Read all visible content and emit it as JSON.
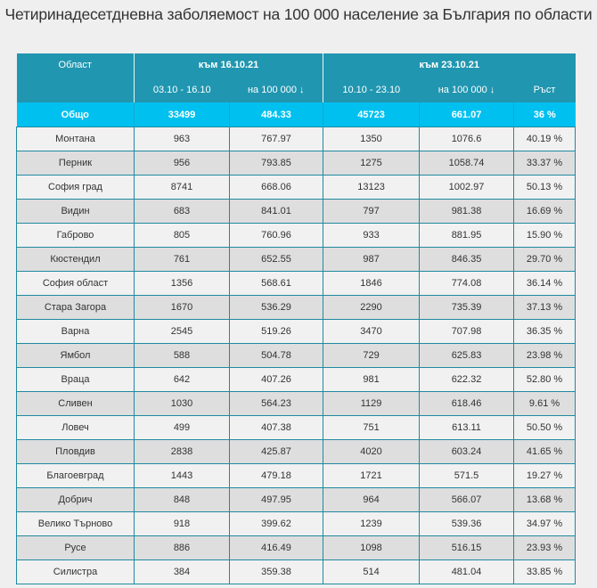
{
  "title": "Четиринадесетдневна заболяемост на 100 000 население за България по области",
  "header": {
    "region": "Област",
    "group1": "към 16.10.21",
    "group2": "към 23.10.21",
    "g1_cases": "03.10 - 16.10",
    "g1_per100k": "на 100 000 ↓",
    "g2_cases": "10.10 - 23.10",
    "g2_per100k": "на 100 000 ↓",
    "growth": "Ръст"
  },
  "total": {
    "region": "Общо",
    "g1_cases": "33499",
    "g1_per100k": "484.33",
    "g2_cases": "45723",
    "g2_per100k": "661.07",
    "growth": "36 %"
  },
  "rows": [
    {
      "region": "Монтана",
      "g1_cases": "963",
      "g1_per100k": "767.97",
      "g2_cases": "1350",
      "g2_per100k": "1076.6",
      "growth": "40.19 %"
    },
    {
      "region": "Перник",
      "g1_cases": "956",
      "g1_per100k": "793.85",
      "g2_cases": "1275",
      "g2_per100k": "1058.74",
      "growth": "33.37 %"
    },
    {
      "region": "София град",
      "g1_cases": "8741",
      "g1_per100k": "668.06",
      "g2_cases": "13123",
      "g2_per100k": "1002.97",
      "growth": "50.13 %"
    },
    {
      "region": "Видин",
      "g1_cases": "683",
      "g1_per100k": "841.01",
      "g2_cases": "797",
      "g2_per100k": "981.38",
      "growth": "16.69 %"
    },
    {
      "region": "Габрово",
      "g1_cases": "805",
      "g1_per100k": "760.96",
      "g2_cases": "933",
      "g2_per100k": "881.95",
      "growth": "15.90 %"
    },
    {
      "region": "Кюстендил",
      "g1_cases": "761",
      "g1_per100k": "652.55",
      "g2_cases": "987",
      "g2_per100k": "846.35",
      "growth": "29.70 %"
    },
    {
      "region": "София област",
      "g1_cases": "1356",
      "g1_per100k": "568.61",
      "g2_cases": "1846",
      "g2_per100k": "774.08",
      "growth": "36.14 %"
    },
    {
      "region": "Стара Загора",
      "g1_cases": "1670",
      "g1_per100k": "536.29",
      "g2_cases": "2290",
      "g2_per100k": "735.39",
      "growth": "37.13 %"
    },
    {
      "region": "Варна",
      "g1_cases": "2545",
      "g1_per100k": "519.26",
      "g2_cases": "3470",
      "g2_per100k": "707.98",
      "growth": "36.35 %"
    },
    {
      "region": "Ямбол",
      "g1_cases": "588",
      "g1_per100k": "504.78",
      "g2_cases": "729",
      "g2_per100k": "625.83",
      "growth": "23.98 %"
    },
    {
      "region": "Враца",
      "g1_cases": "642",
      "g1_per100k": "407.26",
      "g2_cases": "981",
      "g2_per100k": "622.32",
      "growth": "52.80 %"
    },
    {
      "region": "Сливен",
      "g1_cases": "1030",
      "g1_per100k": "564.23",
      "g2_cases": "1129",
      "g2_per100k": "618.46",
      "growth": "9.61 %"
    },
    {
      "region": "Ловеч",
      "g1_cases": "499",
      "g1_per100k": "407.38",
      "g2_cases": "751",
      "g2_per100k": "613.11",
      "growth": "50.50 %"
    },
    {
      "region": "Пловдив",
      "g1_cases": "2838",
      "g1_per100k": "425.87",
      "g2_cases": "4020",
      "g2_per100k": "603.24",
      "growth": "41.65 %"
    },
    {
      "region": "Благоевград",
      "g1_cases": "1443",
      "g1_per100k": "479.18",
      "g2_cases": "1721",
      "g2_per100k": "571.5",
      "growth": "19.27 %"
    },
    {
      "region": "Добрич",
      "g1_cases": "848",
      "g1_per100k": "497.95",
      "g2_cases": "964",
      "g2_per100k": "566.07",
      "growth": "13.68 %"
    },
    {
      "region": "Велико Търново",
      "g1_cases": "918",
      "g1_per100k": "399.62",
      "g2_cases": "1239",
      "g2_per100k": "539.36",
      "growth": "34.97 %"
    },
    {
      "region": "Русе",
      "g1_cases": "886",
      "g1_per100k": "416.49",
      "g2_cases": "1098",
      "g2_per100k": "516.15",
      "growth": "23.93 %"
    },
    {
      "region": "Силистра",
      "g1_cases": "384",
      "g1_per100k": "359.38",
      "g2_cases": "514",
      "g2_per100k": "481.04",
      "growth": "33.85 %"
    }
  ],
  "colors": {
    "header_bg": "#2196b0",
    "total_bg": "#00c0f0",
    "border": "#1f8aa0",
    "row_light": "#f1f1f1",
    "row_dark": "#dedede"
  }
}
